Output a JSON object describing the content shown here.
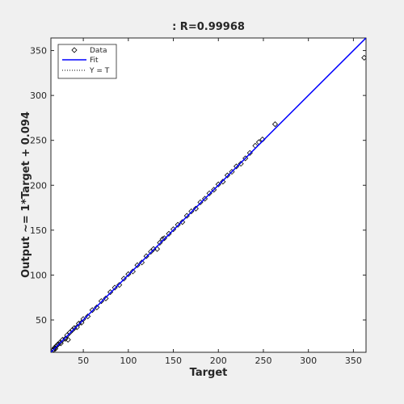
{
  "chart_data": {
    "type": "regression",
    "title": ": R=0.99968",
    "xlabel": "Target",
    "ylabel": "Output ~= 1*Target + 0.094",
    "series": [
      {
        "name": "Data",
        "marker": "diamond",
        "color": "#000000",
        "x": [
          16,
          17,
          18,
          19,
          20,
          21,
          22,
          24,
          25,
          27,
          30,
          32,
          33,
          35,
          38,
          40,
          43,
          45,
          48,
          50,
          55,
          60,
          65,
          70,
          75,
          80,
          85,
          90,
          95,
          100,
          105,
          110,
          115,
          120,
          125,
          128,
          132,
          135,
          138,
          140,
          145,
          150,
          155,
          160,
          165,
          170,
          175,
          180,
          185,
          190,
          195,
          200,
          205,
          210,
          215,
          220,
          225,
          230,
          235,
          241,
          245,
          249,
          263,
          362
        ],
        "y": [
          16,
          17,
          19,
          18,
          21,
          22,
          23,
          25,
          24,
          28,
          29,
          33,
          28,
          36,
          39,
          41,
          42,
          46,
          47,
          51,
          54,
          61,
          64,
          71,
          74,
          81,
          86,
          89,
          96,
          101,
          104,
          111,
          114,
          121,
          126,
          129,
          129,
          136,
          140,
          141,
          146,
          151,
          156,
          159,
          166,
          171,
          174,
          181,
          185,
          191,
          195,
          201,
          204,
          211,
          215,
          221,
          224,
          230,
          236,
          244,
          248,
          251,
          268,
          342
        ]
      }
    ],
    "fit": {
      "name": "Fit",
      "color": "#0000ff",
      "slope": 1,
      "intercept": 0.094
    },
    "identity": {
      "name": "Y = T",
      "color": "#000000"
    },
    "xlim": [
      14,
      364
    ],
    "ylim": [
      14,
      364
    ],
    "xticks": [
      50,
      100,
      150,
      200,
      250,
      300,
      350
    ],
    "yticks": [
      50,
      100,
      150,
      200,
      250,
      300,
      350
    ],
    "legend": "upper-left"
  }
}
